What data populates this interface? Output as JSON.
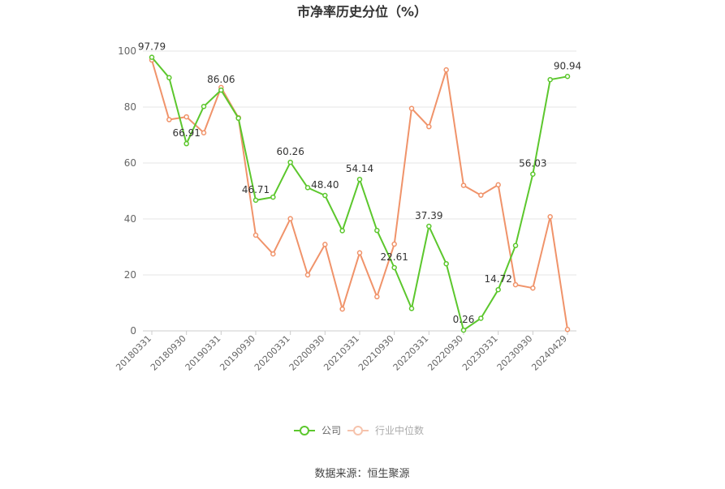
{
  "chart_data": {
    "type": "line",
    "title": "市净率历史分位（%）",
    "source_text": "数据来源：恒生聚源",
    "ylim": [
      0,
      100
    ],
    "yticks": [
      0,
      20,
      40,
      60,
      80,
      100
    ],
    "x": [
      "20180331",
      "20180630",
      "20180930",
      "20181231",
      "20190331",
      "20190630",
      "20190930",
      "20191231",
      "20200331",
      "20200630",
      "20200930",
      "20201231",
      "20210331",
      "20210630",
      "20210930",
      "20211231",
      "20220331",
      "20220630",
      "20220930",
      "20221231",
      "20230331",
      "20230630",
      "20230930",
      "20231231",
      "20240429"
    ],
    "x_tick_labels": [
      "20180331",
      "20180930",
      "20190331",
      "20190930",
      "20200331",
      "20200930",
      "20210331",
      "20210930",
      "20220331",
      "20220930",
      "20230331",
      "20230930",
      "20240429"
    ],
    "grid": "horizontal",
    "legend_position": "bottom-center",
    "series": [
      {
        "name": "公司",
        "color": "#5cc72d",
        "values": [
          97.79,
          90.5,
          66.91,
          80.2,
          86.06,
          76.0,
          46.71,
          47.8,
          60.26,
          51.2,
          48.4,
          35.8,
          54.14,
          35.9,
          22.61,
          8.0,
          37.39,
          24.0,
          0.26,
          4.5,
          14.72,
          30.5,
          56.03,
          89.8,
          90.94
        ],
        "labels": {
          "0": "97.79",
          "2": "66.91",
          "4": "86.06",
          "6": "46.71",
          "8": "60.26",
          "10": "48.40",
          "12": "54.14",
          "14": "22.61",
          "16": "37.39",
          "18": "0.26",
          "20": "14.72",
          "22": "56.03",
          "24": "90.94"
        }
      },
      {
        "name": "行业中位数",
        "color": "#f0936a",
        "values": [
          96.8,
          75.5,
          76.5,
          70.8,
          87.0,
          76.2,
          34.2,
          27.5,
          40.1,
          20.0,
          30.9,
          7.8,
          27.9,
          12.2,
          31.0,
          79.5,
          73.0,
          93.3,
          52.0,
          48.5,
          52.2,
          16.5,
          15.3,
          40.8,
          0.5
        ]
      }
    ]
  }
}
